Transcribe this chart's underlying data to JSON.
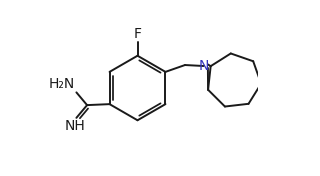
{
  "background_color": "#ffffff",
  "line_color": "#1a1a1a",
  "n_color": "#3333bb",
  "line_width": 1.4,
  "font_size": 10,
  "figure_width": 3.2,
  "figure_height": 1.76,
  "dpi": 100,
  "xlim": [
    0.0,
    1.0
  ],
  "ylim": [
    0.0,
    1.0
  ]
}
